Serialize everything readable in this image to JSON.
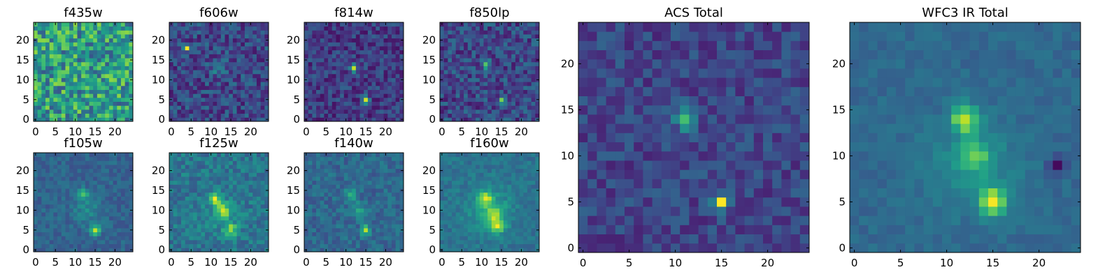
{
  "figure": {
    "type": "heatmap_grid",
    "colormap": "viridis",
    "colormap_stops": [
      "#440154",
      "#482878",
      "#3e4989",
      "#31688e",
      "#26828e",
      "#1f9e89",
      "#35b779",
      "#6ece58",
      "#b5de2b",
      "#fde725"
    ]
  },
  "chart_data": [
    {
      "type": "heatmap",
      "title": "f435w",
      "grid": [
        25,
        25
      ],
      "xlim": [
        0,
        24
      ],
      "ylim": [
        0,
        24
      ],
      "xticks": [
        "0",
        "5",
        "10",
        "15",
        "20"
      ],
      "yticks": [
        "0",
        "5",
        "10",
        "15",
        "20"
      ],
      "background_level": 0.55,
      "noise": 0.28,
      "seed": 11,
      "features": []
    },
    {
      "type": "heatmap",
      "title": "f606w",
      "grid": [
        25,
        25
      ],
      "xlim": [
        0,
        24
      ],
      "ylim": [
        0,
        24
      ],
      "xticks": [
        "0",
        "5",
        "10",
        "15",
        "20"
      ],
      "yticks": [
        "0",
        "5",
        "10",
        "15",
        "20"
      ],
      "background_level": 0.22,
      "noise": 0.16,
      "seed": 23,
      "features": [
        {
          "x": 4,
          "y": 18,
          "amp": 0.7,
          "sigma": 0.5
        },
        {
          "x": 12,
          "y": 13,
          "amp": 0.18,
          "sigma": 1.5
        }
      ]
    },
    {
      "type": "heatmap",
      "title": "f814w",
      "grid": [
        25,
        25
      ],
      "xlim": [
        0,
        24
      ],
      "ylim": [
        0,
        24
      ],
      "xticks": [
        "0",
        "5",
        "10",
        "15",
        "20"
      ],
      "yticks": [
        "0",
        "5",
        "10",
        "15",
        "20"
      ],
      "background_level": 0.18,
      "noise": 0.14,
      "seed": 37,
      "features": [
        {
          "x": 12,
          "y": 13,
          "amp": 0.75,
          "sigma": 0.6
        },
        {
          "x": 15,
          "y": 5,
          "amp": 0.7,
          "sigma": 0.6
        }
      ]
    },
    {
      "type": "heatmap",
      "title": "f850lp",
      "grid": [
        25,
        25
      ],
      "xlim": [
        0,
        24
      ],
      "ylim": [
        0,
        24
      ],
      "xticks": [
        "0",
        "5",
        "10",
        "15",
        "20"
      ],
      "yticks": [
        "0",
        "5",
        "10",
        "15",
        "20"
      ],
      "background_level": 0.22,
      "noise": 0.16,
      "seed": 41,
      "features": [
        {
          "x": 11,
          "y": 14,
          "amp": 0.45,
          "sigma": 0.8
        },
        {
          "x": 15,
          "y": 5,
          "amp": 0.7,
          "sigma": 0.5
        }
      ]
    },
    {
      "type": "heatmap",
      "title": "f105w",
      "grid": [
        25,
        25
      ],
      "xlim": [
        0,
        24
      ],
      "ylim": [
        0,
        24
      ],
      "xticks": [
        "0",
        "5",
        "10",
        "15",
        "20"
      ],
      "yticks": [
        "0",
        "5",
        "10",
        "15",
        "20"
      ],
      "background_level": 0.32,
      "noise": 0.08,
      "seed": 53,
      "features": [
        {
          "x": 12,
          "y": 14,
          "amp": 0.3,
          "sigma": 1.0
        },
        {
          "x": 15,
          "y": 5,
          "amp": 0.6,
          "sigma": 0.8
        },
        {
          "x": 13,
          "y": 10,
          "amp": 0.15,
          "sigma": 2.5
        }
      ]
    },
    {
      "type": "heatmap",
      "title": "f125w",
      "grid": [
        25,
        25
      ],
      "xlim": [
        0,
        24
      ],
      "ylim": [
        0,
        24
      ],
      "xticks": [
        "0",
        "5",
        "10",
        "15",
        "20"
      ],
      "yticks": [
        "0",
        "5",
        "10",
        "15",
        "20"
      ],
      "background_level": 0.4,
      "noise": 0.12,
      "seed": 67,
      "features": [
        {
          "x": 11,
          "y": 13,
          "amp": 0.5,
          "sigma": 1.0
        },
        {
          "x": 13,
          "y": 10,
          "amp": 0.35,
          "sigma": 1.2
        },
        {
          "x": 15,
          "y": 5,
          "amp": 0.45,
          "sigma": 1.0
        },
        {
          "x": 13,
          "y": 9,
          "amp": 0.15,
          "sigma": 3.0
        }
      ]
    },
    {
      "type": "heatmap",
      "title": "f140w",
      "grid": [
        25,
        25
      ],
      "xlim": [
        0,
        24
      ],
      "ylim": [
        0,
        24
      ],
      "xticks": [
        "0",
        "5",
        "10",
        "15",
        "20"
      ],
      "yticks": [
        "0",
        "5",
        "10",
        "15",
        "20"
      ],
      "background_level": 0.34,
      "noise": 0.1,
      "seed": 79,
      "features": [
        {
          "x": 11,
          "y": 14,
          "amp": 0.3,
          "sigma": 1.0
        },
        {
          "x": 13,
          "y": 10,
          "amp": 0.2,
          "sigma": 1.5
        },
        {
          "x": 15,
          "y": 5,
          "amp": 0.55,
          "sigma": 0.8
        }
      ]
    },
    {
      "type": "heatmap",
      "title": "f160w",
      "grid": [
        25,
        25
      ],
      "xlim": [
        0,
        24
      ],
      "ylim": [
        0,
        24
      ],
      "xticks": [
        "0",
        "5",
        "10",
        "15",
        "20"
      ],
      "yticks": [
        "0",
        "5",
        "10",
        "15",
        "20"
      ],
      "background_level": 0.4,
      "noise": 0.08,
      "seed": 83,
      "features": [
        {
          "x": 11,
          "y": 13,
          "amp": 0.45,
          "sigma": 1.2
        },
        {
          "x": 13,
          "y": 9,
          "amp": 0.35,
          "sigma": 1.5
        },
        {
          "x": 14,
          "y": 6,
          "amp": 0.45,
          "sigma": 1.2
        },
        {
          "x": 12,
          "y": 10,
          "amp": 0.2,
          "sigma": 4.0
        }
      ]
    },
    {
      "type": "heatmap",
      "title": "ACS Total",
      "grid": [
        25,
        25
      ],
      "xlim": [
        0,
        24
      ],
      "ylim": [
        0,
        24
      ],
      "xticks": [
        "0",
        "5",
        "10",
        "15",
        "20"
      ],
      "yticks": [
        "0",
        "5",
        "10",
        "15",
        "20"
      ],
      "background_level": 0.22,
      "noise": 0.12,
      "seed": 97,
      "features": [
        {
          "x": 11,
          "y": 14,
          "amp": 0.5,
          "sigma": 0.8
        },
        {
          "x": 15,
          "y": 5,
          "amp": 0.75,
          "sigma": 0.6
        }
      ]
    },
    {
      "type": "heatmap",
      "title": "WFC3 IR Total",
      "grid": [
        25,
        25
      ],
      "xlim": [
        0,
        24
      ],
      "ylim": [
        0,
        24
      ],
      "xticks": [
        "0",
        "5",
        "10",
        "15",
        "20"
      ],
      "yticks": [
        "0",
        "5",
        "10",
        "15",
        "20"
      ],
      "background_level": 0.34,
      "noise": 0.05,
      "seed": 101,
      "features": [
        {
          "x": 12,
          "y": 14,
          "amp": 0.55,
          "sigma": 1.0
        },
        {
          "x": 13,
          "y": 10,
          "amp": 0.3,
          "sigma": 1.2
        },
        {
          "x": 15,
          "y": 5,
          "amp": 0.6,
          "sigma": 1.0
        },
        {
          "x": 13,
          "y": 9,
          "amp": 0.15,
          "sigma": 3.5
        },
        {
          "x": 22,
          "y": 9,
          "amp": -0.3,
          "sigma": 0.6
        }
      ]
    }
  ]
}
